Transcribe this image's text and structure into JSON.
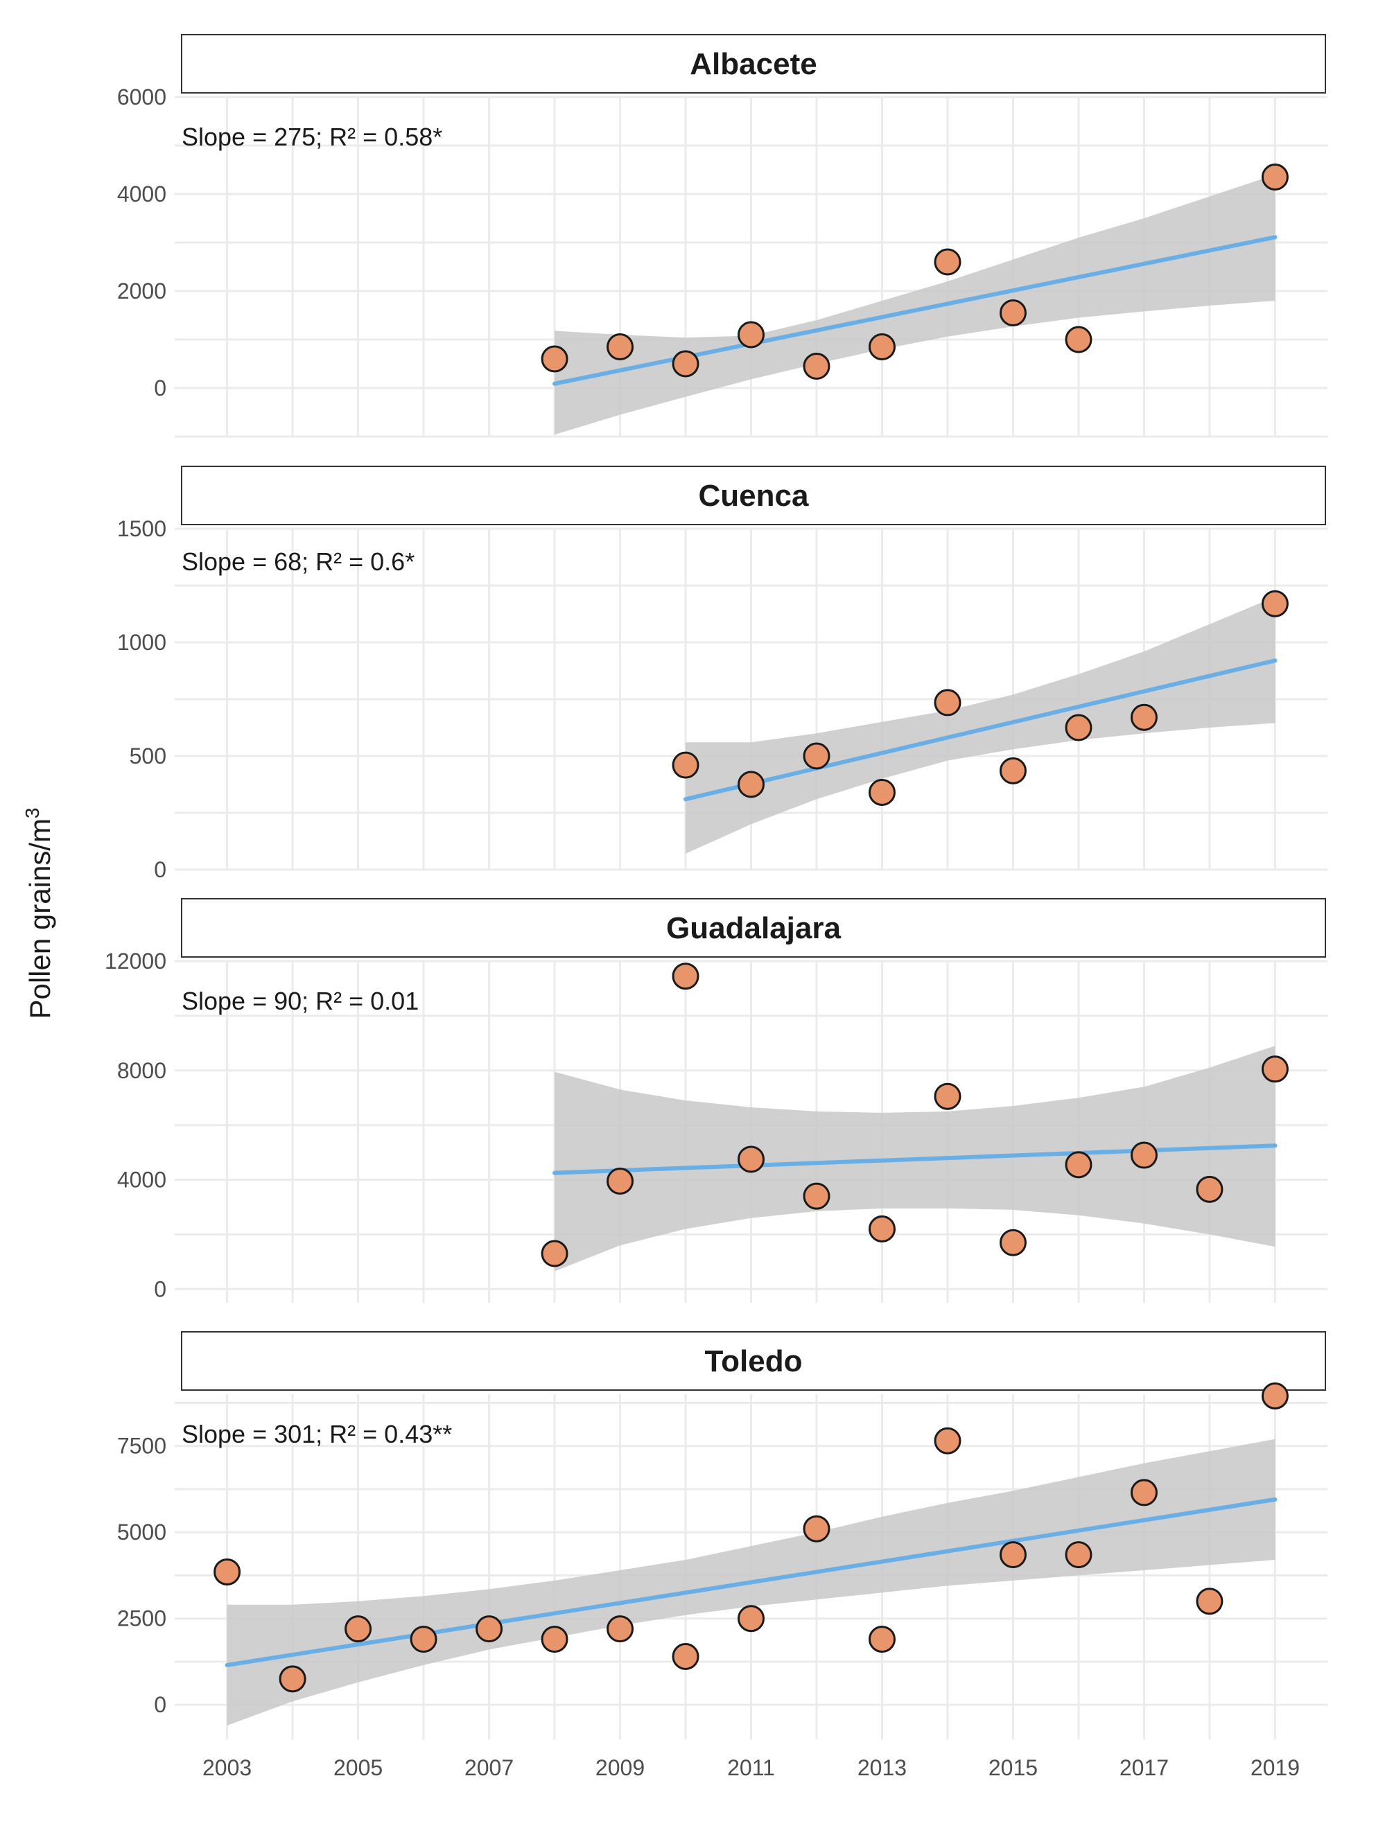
{
  "ylabel": "Pollen grains/m",
  "ylabel_superscript": "3",
  "colors": {
    "point_fill": "#E8956B",
    "point_stroke": "#1a1a1a",
    "trend_line": "#6AAEE6",
    "confidence_band": "#C8C8C8",
    "grid": "#EBEBEB",
    "strip_border": "#333333"
  },
  "chart_data": [
    {
      "type": "scatter",
      "title": "Albacete",
      "annotation": "Slope = 275; R² = 0.58*",
      "xlabel": "",
      "ylabel": "Pollen grains/m³",
      "xlim": [
        2002.2,
        2019.8
      ],
      "ylim": [
        -1000,
        6000
      ],
      "yticks": [
        0,
        2000,
        4000,
        6000
      ],
      "ytick_labels": [
        "0",
        "2000",
        "4000",
        "6000"
      ],
      "x": [
        2008,
        2009,
        2010,
        2011,
        2012,
        2013,
        2014,
        2015,
        2016,
        2019
      ],
      "y": [
        600,
        850,
        500,
        1100,
        450,
        850,
        2600,
        1550,
        1000,
        4350
      ],
      "fit": {
        "x": [
          2008,
          2019
        ],
        "y": [
          90,
          3110
        ]
      },
      "band": {
        "x": [
          2008,
          2009,
          2010,
          2011,
          2012,
          2013,
          2014,
          2015,
          2016,
          2017,
          2018,
          2019
        ],
        "lower": [
          -960,
          -550,
          -180,
          180,
          500,
          800,
          1060,
          1270,
          1450,
          1580,
          1700,
          1800
        ],
        "upper": [
          1180,
          1100,
          1040,
          1080,
          1400,
          1800,
          2200,
          2650,
          3100,
          3500,
          3950,
          4400
        ]
      }
    },
    {
      "type": "scatter",
      "title": "Cuenca",
      "annotation": "Slope = 68; R² = 0.6*",
      "xlabel": "",
      "ylabel": "Pollen grains/m³",
      "xlim": [
        2002.2,
        2019.8
      ],
      "ylim": [
        0,
        1500
      ],
      "yticks": [
        0,
        500,
        1000,
        1500
      ],
      "ytick_labels": [
        "0",
        "500",
        "1000",
        "1500"
      ],
      "x": [
        2010,
        2011,
        2012,
        2013,
        2014,
        2015,
        2016,
        2017,
        2019
      ],
      "y": [
        460,
        375,
        500,
        340,
        735,
        435,
        625,
        670,
        1170
      ],
      "fit": {
        "x": [
          2010,
          2019
        ],
        "y": [
          310,
          920
        ]
      },
      "band": {
        "x": [
          2010,
          2011,
          2012,
          2013,
          2014,
          2015,
          2016,
          2017,
          2018,
          2019
        ],
        "lower": [
          70,
          200,
          310,
          400,
          480,
          530,
          570,
          600,
          625,
          645
        ],
        "upper": [
          560,
          560,
          600,
          650,
          700,
          770,
          860,
          960,
          1080,
          1200
        ]
      }
    },
    {
      "type": "scatter",
      "title": "Guadalajara",
      "annotation": "Slope = 90; R² = 0.01",
      "xlabel": "",
      "ylabel": "Pollen grains/m³",
      "xlim": [
        2002.2,
        2019.8
      ],
      "ylim": [
        -500,
        12000
      ],
      "yticks": [
        0,
        4000,
        8000,
        12000
      ],
      "ytick_labels": [
        "0",
        "4000",
        "8000",
        "12000"
      ],
      "x": [
        2008,
        2009,
        2010,
        2011,
        2012,
        2013,
        2014,
        2015,
        2016,
        2017,
        2018,
        2019
      ],
      "y": [
        1300,
        3950,
        11450,
        4750,
        3400,
        2200,
        7050,
        1700,
        4550,
        4900,
        3650,
        8050
      ],
      "fit": {
        "x": [
          2008,
          2019
        ],
        "y": [
          4250,
          5250
        ]
      },
      "band": {
        "x": [
          2008,
          2009,
          2010,
          2011,
          2012,
          2013,
          2014,
          2015,
          2016,
          2017,
          2018,
          2019
        ],
        "lower": [
          650,
          1600,
          2200,
          2600,
          2850,
          2950,
          2950,
          2900,
          2700,
          2400,
          2000,
          1550
        ],
        "upper": [
          7950,
          7300,
          6900,
          6650,
          6500,
          6450,
          6500,
          6700,
          7000,
          7400,
          8100,
          8900
        ]
      }
    },
    {
      "type": "scatter",
      "title": "Toledo",
      "annotation": "Slope = 301; R² = 0.43**",
      "xlabel": "",
      "ylabel": "Pollen grains/m³",
      "xlim": [
        2002.2,
        2019.8
      ],
      "ylim": [
        -1000,
        9000
      ],
      "yticks": [
        0,
        2500,
        5000,
        7500
      ],
      "ytick_labels": [
        "0",
        "2500",
        "5000",
        "7500"
      ],
      "xticks": [
        2003,
        2005,
        2007,
        2009,
        2011,
        2013,
        2015,
        2017,
        2019
      ],
      "xtick_labels": [
        "2003",
        "2005",
        "2007",
        "2009",
        "2011",
        "2013",
        "2015",
        "2017",
        "2019"
      ],
      "x": [
        2003,
        2004,
        2005,
        2006,
        2007,
        2008,
        2009,
        2010,
        2011,
        2012,
        2013,
        2014,
        2015,
        2016,
        2017,
        2018,
        2019
      ],
      "y": [
        3850,
        750,
        2200,
        1900,
        2200,
        1900,
        2200,
        1400,
        2500,
        5100,
        1900,
        7650,
        4350,
        4350,
        6150,
        3000,
        8950
      ],
      "fit": {
        "x": [
          2003,
          2019
        ],
        "y": [
          1150,
          5950
        ]
      },
      "band": {
        "x": [
          2003,
          2004,
          2005,
          2006,
          2007,
          2008,
          2009,
          2010,
          2011,
          2012,
          2013,
          2014,
          2015,
          2016,
          2017,
          2018,
          2019
        ],
        "lower": [
          -600,
          100,
          650,
          1150,
          1600,
          1950,
          2300,
          2600,
          2850,
          3050,
          3250,
          3450,
          3600,
          3750,
          3900,
          4050,
          4200
        ],
        "upper": [
          2900,
          2900,
          3000,
          3150,
          3350,
          3600,
          3900,
          4200,
          4600,
          5000,
          5450,
          5850,
          6200,
          6600,
          7000,
          7350,
          7700
        ]
      }
    }
  ]
}
